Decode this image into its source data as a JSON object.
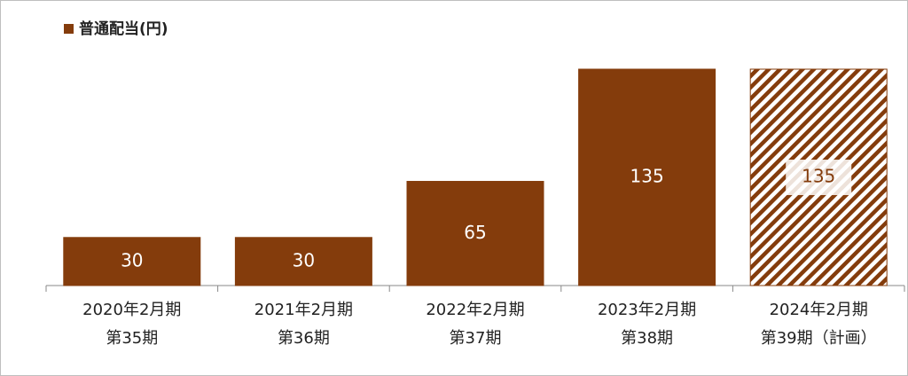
{
  "chart_data": {
    "type": "bar",
    "categories": [
      [
        "2020年2月期",
        "第35期"
      ],
      [
        "2021年2月期",
        "第36期"
      ],
      [
        "2022年2月期",
        "第37期"
      ],
      [
        "2023年2月期",
        "第38期"
      ],
      [
        "2024年2月期",
        "第39期（計画）"
      ]
    ],
    "series": [
      {
        "name": "普通配当(円)",
        "color": "#843c0c",
        "values": [
          30,
          30,
          65,
          135,
          135
        ],
        "patterns": [
          "solid",
          "solid",
          "solid",
          "solid",
          "hatch"
        ]
      }
    ],
    "legend": "top-left"
  }
}
